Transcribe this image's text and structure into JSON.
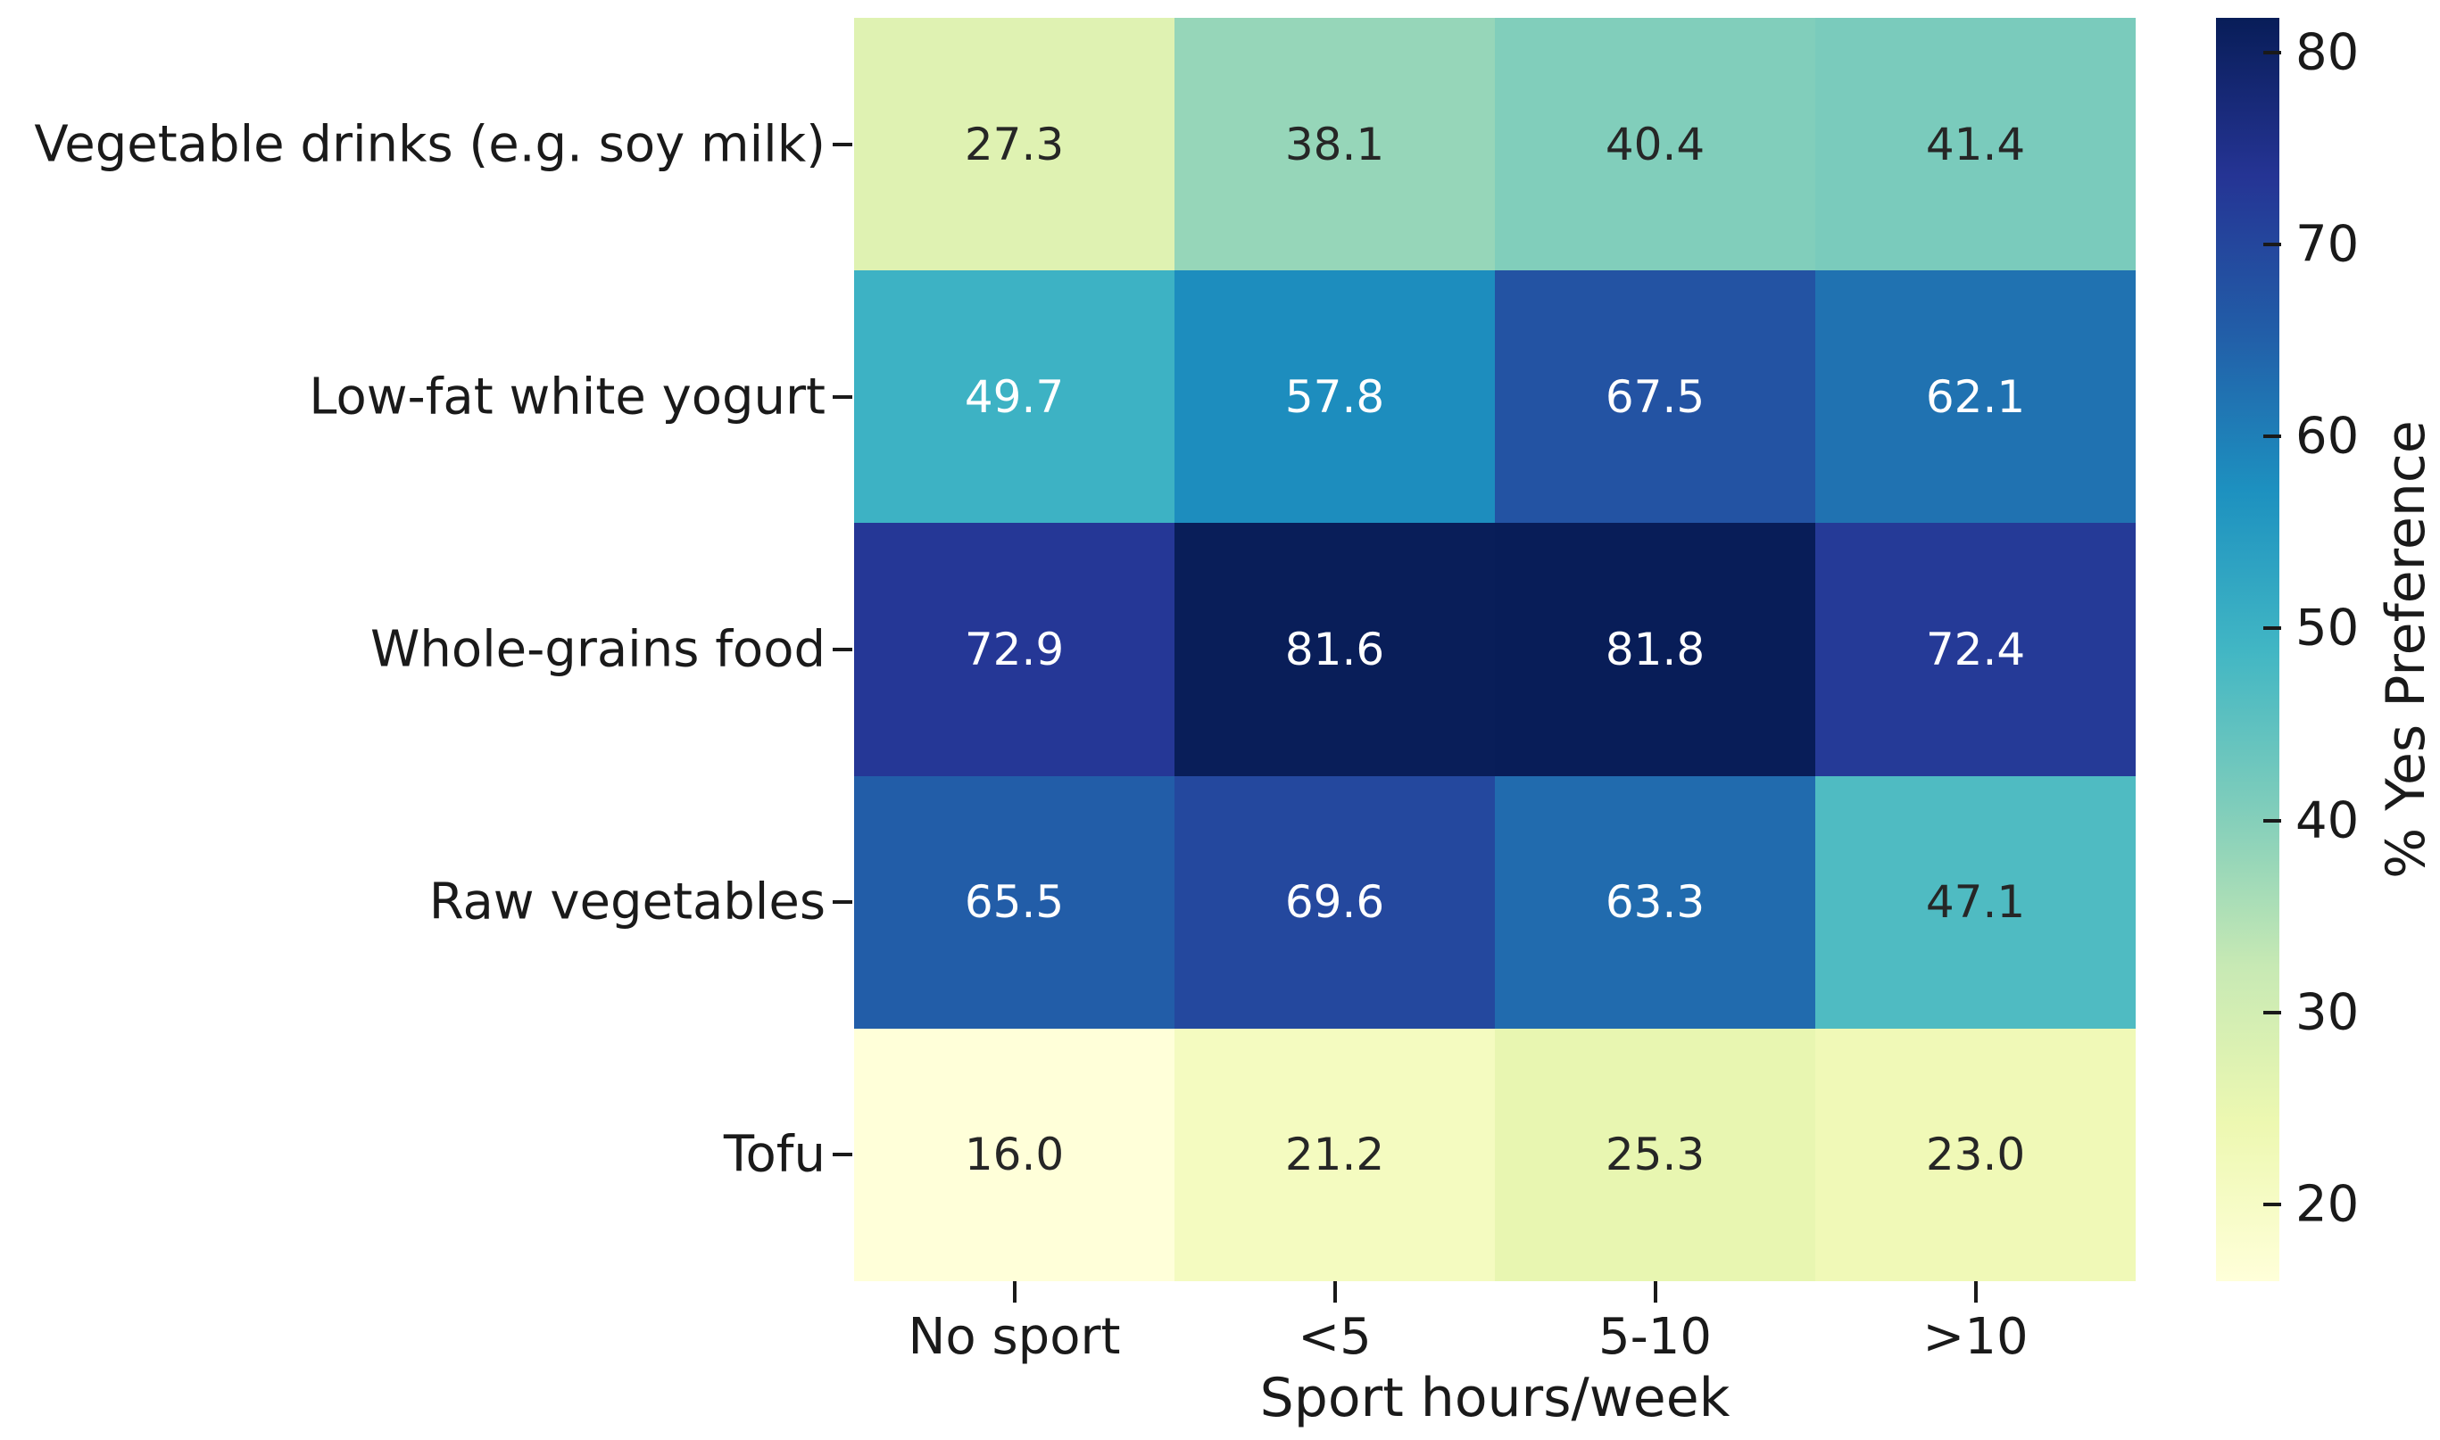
{
  "chart_data": {
    "type": "heatmap",
    "rows": [
      "Vegetable drinks (e.g. soy milk)",
      "Low-fat white yogurt",
      "Whole-grains food",
      "Raw vegetables",
      "Tofu"
    ],
    "columns": [
      "No sport",
      "<5",
      "5-10",
      ">10"
    ],
    "values": [
      [
        27.3,
        38.1,
        40.4,
        41.4
      ],
      [
        49.7,
        57.8,
        67.5,
        62.1
      ],
      [
        72.9,
        81.6,
        81.8,
        72.4
      ],
      [
        65.5,
        69.6,
        63.3,
        47.1
      ],
      [
        16.0,
        21.2,
        25.3,
        23.0
      ]
    ],
    "value_format_decimals": 1,
    "xlabel": "Sport hours/week",
    "ylabel": "",
    "title": "",
    "colorbar_label": "% Yes Preference",
    "colorbar_ticks": [
      20,
      30,
      40,
      50,
      60,
      70,
      80
    ],
    "vmin": 16.0,
    "vmax": 81.8,
    "colormap": "YlGnBu",
    "grid": false,
    "legend_position": "right-colorbar"
  },
  "colors": {
    "background": "#ffffff",
    "axis_text": "#1a1a1a",
    "annot_dark": "#262626",
    "annot_light": "#ffffff",
    "colormap_stops": [
      "#ffffd9",
      "#edf8b1",
      "#c7e9b4",
      "#7fcdbb",
      "#41b6c4",
      "#1d91c0",
      "#225ea8",
      "#253494",
      "#081d58"
    ]
  }
}
